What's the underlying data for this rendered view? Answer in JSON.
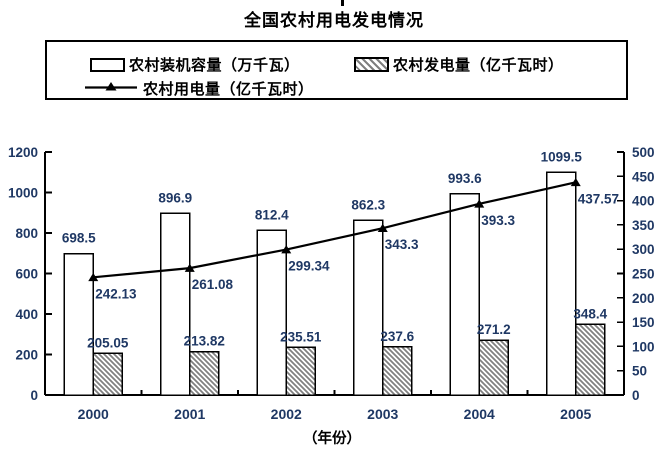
{
  "title": "全国农村用电发电情况",
  "colors": {
    "label": "#1f3864",
    "axis": "#000000",
    "text": "#000000",
    "hatch": "#808080",
    "bar_fill": "#ffffff",
    "background": "#ffffff"
  },
  "legend": {
    "items": [
      {
        "swatch": "white-bar",
        "label": "农村装机容量（万千瓦）"
      },
      {
        "swatch": "hatched-bar",
        "label": "农村发电量（亿千瓦时）"
      },
      {
        "swatch": "line-triangle",
        "label": "农村用电量（亿千瓦时）"
      }
    ]
  },
  "chart_data": {
    "type": "bar+line combo",
    "title": "全国农村用电发电情况",
    "categories": [
      "2000",
      "2001",
      "2002",
      "2003",
      "2004",
      "2005"
    ],
    "xlabel": "（年份）",
    "series": [
      {
        "name": "农村装机容量（万千瓦）",
        "type": "bar",
        "fill": "white",
        "axis": "left",
        "values": [
          698.5,
          896.9,
          812.4,
          862.3,
          993.6,
          1099.5
        ],
        "labels": [
          "698.5",
          "896.9",
          "812.4",
          "862.3",
          "993.6",
          "1099.5"
        ]
      },
      {
        "name": "农村发电量（亿千瓦时）",
        "type": "bar",
        "fill": "hatched",
        "axis": "left",
        "values": [
          205.05,
          213.82,
          235.51,
          237.6,
          271.2,
          348.4
        ],
        "labels": [
          "205.05",
          "213.82",
          "235.51",
          "237.6",
          "271.2",
          "348.4"
        ]
      },
      {
        "name": "农村用电量（亿千瓦时）",
        "type": "line",
        "marker": "triangle",
        "axis": "right",
        "values": [
          242.13,
          261.08,
          299.34,
          343.3,
          393.3,
          437.57
        ],
        "labels": [
          "242.13",
          "261.08",
          "299.34",
          "343.3",
          "393.3",
          "437.57"
        ]
      }
    ],
    "left_axis": {
      "min": 0,
      "max": 1200,
      "step": 200,
      "ticks": [
        "0",
        "200",
        "400",
        "600",
        "800",
        "1000",
        "1200"
      ]
    },
    "right_axis": {
      "min": 0,
      "max": 500,
      "step": 50,
      "ticks": [
        "0",
        "50",
        "100",
        "150",
        "200",
        "250",
        "300",
        "350",
        "400",
        "450",
        "500"
      ]
    },
    "legend_position": "top",
    "grid": false
  }
}
